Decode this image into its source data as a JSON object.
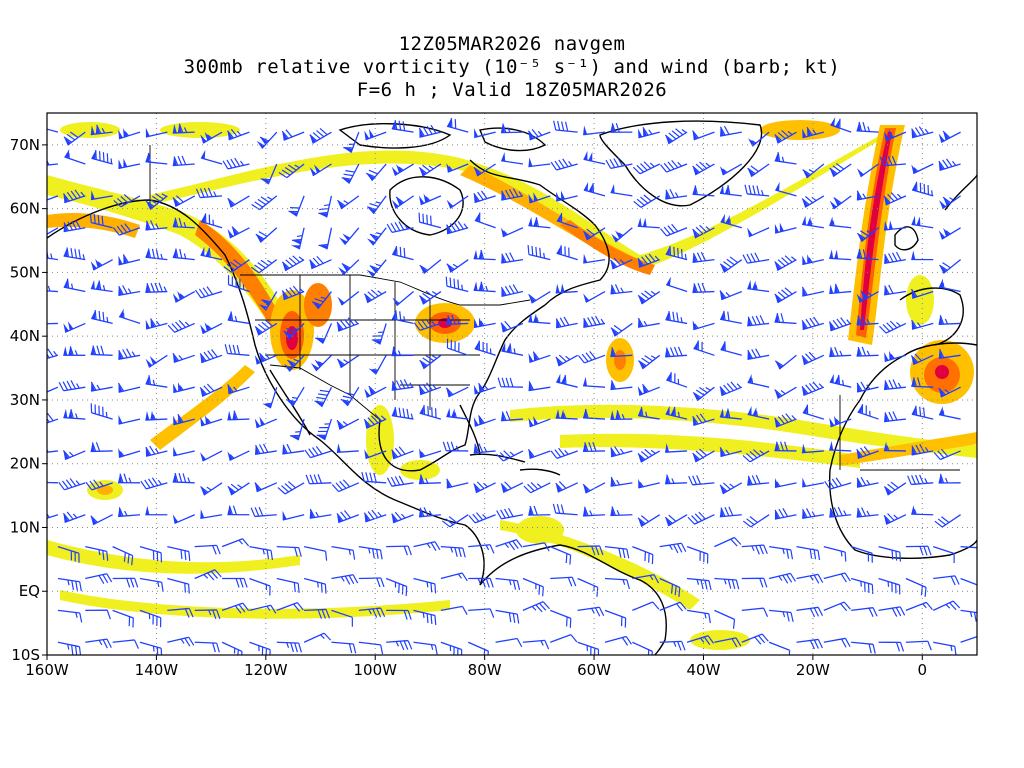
{
  "title": {
    "line1": "12Z05MAR2026 navgem",
    "line2": "300mb relative vorticity (10⁻⁵ s⁻¹) and wind (barb; kt)",
    "line3": "F=6 h ; Valid 18Z05MAR2026"
  },
  "map": {
    "lon_range": [
      -160,
      10
    ],
    "lat_range": [
      -10,
      75
    ],
    "lon_ticks": [
      "160W",
      "140W",
      "120W",
      "100W",
      "80W",
      "60W",
      "40W",
      "20W",
      "0"
    ],
    "lat_ticks": [
      "70N",
      "60N",
      "50N",
      "40N",
      "30N",
      "20N",
      "10N",
      "EQ",
      "10S"
    ],
    "gridlines": "dotted",
    "barb_color": "#2040ff",
    "shading_colors": [
      "#f0f020",
      "#ffc000",
      "#ff8000",
      "#ff4000",
      "#e00040"
    ]
  }
}
